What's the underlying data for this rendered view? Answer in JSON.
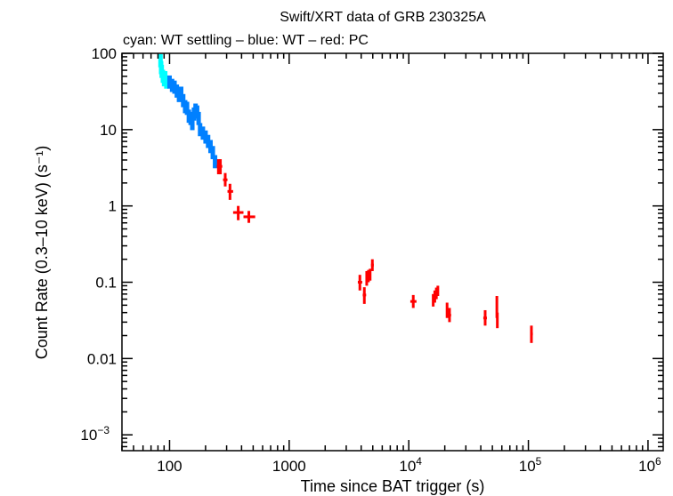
{
  "chart_data": {
    "type": "scatter",
    "title": "Swift/XRT data of GRB 230325A",
    "subtitle": "cyan: WT settling – blue: WT – red: PC",
    "xlabel": "Time since BAT trigger (s)",
    "ylabel": "Count Rate (0.3–10 keV) (s⁻¹)",
    "xscale": "log",
    "yscale": "log",
    "xlim": [
      40,
      1340000
    ],
    "ylim": [
      0.00062,
      100
    ],
    "grid": false,
    "x_ticks": [
      {
        "value": 100,
        "label": "100"
      },
      {
        "value": 1000,
        "label": "1000"
      },
      {
        "value": 10000,
        "base": "10",
        "exp": "4"
      },
      {
        "value": 100000,
        "base": "10",
        "exp": "5"
      },
      {
        "value": 1000000,
        "base": "10",
        "exp": "6"
      }
    ],
    "y_ticks": [
      {
        "value": 100,
        "label": "100"
      },
      {
        "value": 10,
        "label": "10"
      },
      {
        "value": 1,
        "label": "1"
      },
      {
        "value": 0.1,
        "label": "0.1"
      },
      {
        "value": 0.01,
        "label": "0.01"
      },
      {
        "value": 0.001,
        "base": "10",
        "exp": "−3"
      }
    ],
    "series": [
      {
        "mode": "WT settling",
        "color": "#00ffff",
        "points": [
          [
            84,
            80
          ],
          [
            85,
            65
          ],
          [
            86,
            58
          ],
          [
            88,
            50
          ],
          [
            90,
            45
          ],
          [
            92,
            48
          ],
          [
            94,
            42
          ]
        ]
      },
      {
        "mode": "WT",
        "color": "#0080ff",
        "points": [
          [
            100,
            42
          ],
          [
            105,
            38
          ],
          [
            110,
            36
          ],
          [
            115,
            32
          ],
          [
            120,
            28
          ],
          [
            125,
            30
          ],
          [
            130,
            24
          ],
          [
            135,
            20
          ],
          [
            140,
            19
          ],
          [
            145,
            15
          ],
          [
            150,
            14
          ],
          [
            155,
            12
          ],
          [
            160,
            16
          ],
          [
            165,
            18
          ],
          [
            170,
            17
          ],
          [
            175,
            14
          ],
          [
            180,
            10
          ],
          [
            190,
            9
          ],
          [
            200,
            8
          ],
          [
            210,
            7
          ],
          [
            220,
            6
          ],
          [
            230,
            5
          ],
          [
            240,
            3.8
          ]
        ]
      },
      {
        "mode": "PC",
        "color": "#ff0000",
        "points": [
          {
            "t": 256,
            "r": 3.3,
            "tlo": 248,
            "thi": 266,
            "rlo": 2.6,
            "rhi": 4.1
          },
          {
            "t": 266,
            "r": 3.3,
            "tlo": 258,
            "thi": 276,
            "rlo": 2.6,
            "rhi": 4.1
          },
          {
            "t": 292,
            "r": 2.2,
            "tlo": 280,
            "thi": 305,
            "rlo": 1.8,
            "rhi": 2.7
          },
          {
            "t": 320,
            "r": 1.55,
            "tlo": 305,
            "thi": 340,
            "rlo": 1.2,
            "rhi": 1.95
          },
          {
            "t": 375,
            "r": 0.82,
            "tlo": 340,
            "thi": 415,
            "rlo": 0.65,
            "rhi": 1.0
          },
          {
            "t": 460,
            "r": 0.72,
            "tlo": 415,
            "thi": 520,
            "rlo": 0.6,
            "rhi": 0.86
          },
          {
            "t": 3900,
            "r": 0.1,
            "tlo": 3750,
            "thi": 4080,
            "rlo": 0.078,
            "rhi": 0.125
          },
          {
            "t": 4250,
            "r": 0.068,
            "tlo": 4120,
            "thi": 4400,
            "rlo": 0.052,
            "rhi": 0.086
          },
          {
            "t": 4450,
            "r": 0.11,
            "tlo": 4380,
            "thi": 4520,
            "rlo": 0.09,
            "rhi": 0.14
          },
          {
            "t": 4600,
            "r": 0.12,
            "tlo": 4520,
            "thi": 4680,
            "rlo": 0.1,
            "rhi": 0.145
          },
          {
            "t": 4750,
            "r": 0.13,
            "tlo": 4680,
            "thi": 4830,
            "rlo": 0.105,
            "rhi": 0.15
          },
          {
            "t": 4960,
            "r": 0.168,
            "tlo": 4830,
            "thi": 5100,
            "rlo": 0.14,
            "rhi": 0.2
          },
          {
            "t": 10900,
            "r": 0.056,
            "tlo": 10300,
            "thi": 11600,
            "rlo": 0.046,
            "rhi": 0.068
          },
          {
            "t": 16000,
            "r": 0.058,
            "tlo": 15800,
            "thi": 16300,
            "rlo": 0.048,
            "rhi": 0.07
          },
          {
            "t": 16500,
            "r": 0.065,
            "tlo": 16300,
            "thi": 16750,
            "rlo": 0.054,
            "rhi": 0.078
          },
          {
            "t": 17000,
            "r": 0.072,
            "tlo": 16750,
            "thi": 17250,
            "rlo": 0.06,
            "rhi": 0.085
          },
          {
            "t": 17500,
            "r": 0.078,
            "tlo": 17250,
            "thi": 17800,
            "rlo": 0.066,
            "rhi": 0.09
          },
          {
            "t": 20900,
            "r": 0.043,
            "tlo": 20500,
            "thi": 21400,
            "rlo": 0.034,
            "rhi": 0.054
          },
          {
            "t": 21900,
            "r": 0.037,
            "tlo": 21400,
            "thi": 22600,
            "rlo": 0.03,
            "rhi": 0.046
          },
          {
            "t": 43500,
            "r": 0.034,
            "tlo": 42000,
            "thi": 45000,
            "rlo": 0.027,
            "rhi": 0.043
          },
          {
            "t": 54500,
            "r": 0.048,
            "tlo": 54000,
            "thi": 55000,
            "rlo": 0.034,
            "rhi": 0.066
          },
          {
            "t": 55000,
            "r": 0.032,
            "tlo": 54500,
            "thi": 56000,
            "rlo": 0.025,
            "rhi": 0.04
          },
          {
            "t": 106000,
            "r": 0.021,
            "tlo": 104000,
            "thi": 109000,
            "rlo": 0.016,
            "rhi": 0.027
          }
        ]
      }
    ]
  }
}
